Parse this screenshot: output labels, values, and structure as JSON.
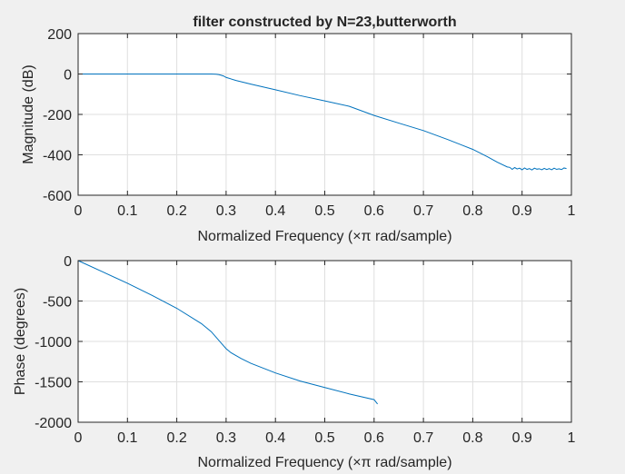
{
  "chart_data": [
    {
      "type": "line",
      "title": "filter constructed by N=23,butterworth",
      "xlabel": "Normalized Frequency  (×π rad/sample)",
      "ylabel": "Magnitude (dB)",
      "xlim": [
        0,
        1
      ],
      "ylim": [
        -600,
        200
      ],
      "xticks": [
        0,
        0.1,
        0.2,
        0.3,
        0.4,
        0.5,
        0.6,
        0.7,
        0.8,
        0.9,
        1
      ],
      "xtick_labels": [
        "0",
        "0.1",
        "0.2",
        "0.3",
        "0.4",
        "0.5",
        "0.6",
        "0.7",
        "0.8",
        "0.9",
        "1"
      ],
      "yticks": [
        200,
        0,
        -200,
        -400,
        -600
      ],
      "ytick_labels": [
        "200",
        "0",
        "-200",
        "-400",
        "-600"
      ],
      "grid": true,
      "line_color": "#0072bd",
      "series": [
        {
          "x": [
            0,
            0.05,
            0.1,
            0.15,
            0.2,
            0.25,
            0.27,
            0.28,
            0.285,
            0.29,
            0.295,
            0.3,
            0.32,
            0.35,
            0.4,
            0.45,
            0.5,
            0.55,
            0.6,
            0.65,
            0.7,
            0.75,
            0.8,
            0.83,
            0.85,
            0.87,
            0.875,
            0.88,
            0.885,
            0.89,
            0.895,
            0.9,
            0.905,
            0.91,
            0.915,
            0.92,
            0.925,
            0.93,
            0.935,
            0.94,
            0.945,
            0.95,
            0.955,
            0.96,
            0.965,
            0.97,
            0.975,
            0.98,
            0.985,
            0.99
          ],
          "y": [
            0,
            0,
            0,
            0,
            0,
            0,
            0,
            -1,
            -3,
            -6,
            -10,
            -17,
            -32,
            -50,
            -78,
            -107,
            -133,
            -160,
            -205,
            -243,
            -280,
            -325,
            -373,
            -410,
            -437,
            -460,
            -462,
            -472,
            -463,
            -470,
            -466,
            -474,
            -465,
            -472,
            -468,
            -475,
            -466,
            -471,
            -469,
            -474,
            -467,
            -473,
            -468,
            -474,
            -466,
            -472,
            -469,
            -473,
            -465,
            -468
          ]
        }
      ]
    },
    {
      "type": "line",
      "xlabel": "Normalized Frequency  (×π rad/sample)",
      "ylabel": "Phase (degrees)",
      "xlim": [
        0,
        1
      ],
      "ylim": [
        -2000,
        0
      ],
      "xticks": [
        0,
        0.1,
        0.2,
        0.3,
        0.4,
        0.5,
        0.6,
        0.7,
        0.8,
        0.9,
        1
      ],
      "xtick_labels": [
        "0",
        "0.1",
        "0.2",
        "0.3",
        "0.4",
        "0.5",
        "0.6",
        "0.7",
        "0.8",
        "0.9",
        "1"
      ],
      "yticks": [
        0,
        -500,
        -1000,
        -1500,
        -2000
      ],
      "ytick_labels": [
        "0",
        "-500",
        "-1000",
        "-1500",
        "-2000"
      ],
      "grid": true,
      "line_color": "#0072bd",
      "series": [
        {
          "x": [
            0,
            0.05,
            0.1,
            0.15,
            0.2,
            0.25,
            0.27,
            0.29,
            0.3,
            0.31,
            0.33,
            0.35,
            0.4,
            0.45,
            0.5,
            0.55,
            0.6,
            0.607
          ],
          "y": [
            0,
            -140,
            -280,
            -430,
            -590,
            -780,
            -880,
            -1020,
            -1090,
            -1140,
            -1210,
            -1270,
            -1390,
            -1490,
            -1570,
            -1650,
            -1720,
            -1775
          ]
        }
      ]
    }
  ]
}
